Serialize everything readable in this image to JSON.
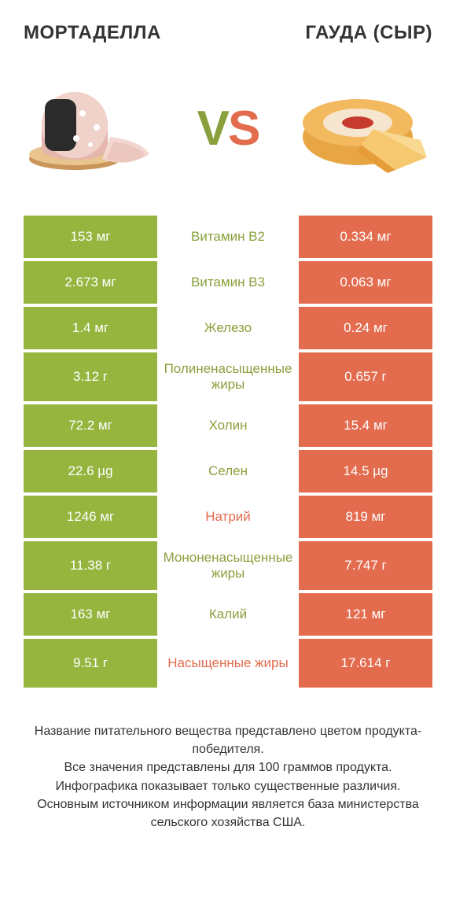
{
  "colors": {
    "green": "#95b53f",
    "orange": "#e36b4e",
    "green_text": "#8aa03c",
    "background": "#ffffff",
    "text": "#333333"
  },
  "titles": {
    "left": "МОРТАДЕЛЛА",
    "right": "ГАУДА (СЫР)"
  },
  "vs": {
    "v": "V",
    "s": "S"
  },
  "table": {
    "left_bg": "#95b53f",
    "right_bg": "#e36b4e",
    "rows": [
      {
        "left": "153 мг",
        "label": "Витамин B2",
        "right": "0.334 мг",
        "winner": "left",
        "tall": false
      },
      {
        "left": "2.673 мг",
        "label": "Витамин B3",
        "right": "0.063 мг",
        "winner": "left",
        "tall": false
      },
      {
        "left": "1.4 мг",
        "label": "Железо",
        "right": "0.24 мг",
        "winner": "left",
        "tall": false
      },
      {
        "left": "3.12 г",
        "label": "Полиненасыщенные жиры",
        "right": "0.657 г",
        "winner": "left",
        "tall": true
      },
      {
        "left": "72.2 мг",
        "label": "Холин",
        "right": "15.4 мг",
        "winner": "left",
        "tall": false
      },
      {
        "left": "22.6 µg",
        "label": "Селен",
        "right": "14.5 µg",
        "winner": "left",
        "tall": false
      },
      {
        "left": "1246 мг",
        "label": "Натрий",
        "right": "819 мг",
        "winner": "right",
        "tall": false
      },
      {
        "left": "11.38 г",
        "label": "Мононенасыщенные жиры",
        "right": "7.747 г",
        "winner": "left",
        "tall": true
      },
      {
        "left": "163 мг",
        "label": "Калий",
        "right": "121 мг",
        "winner": "left",
        "tall": false
      },
      {
        "left": "9.51 г",
        "label": "Насыщенные жиры",
        "right": "17.614 г",
        "winner": "right",
        "tall": true
      }
    ]
  },
  "footnote": "Название питательного вещества представлено цветом продукта-победителя.\nВсе значения представлены для 100 граммов продукта.\nИнфографика показывает только существенные различия.\nОсновным источником информации является база министерства сельского хозяйства США."
}
